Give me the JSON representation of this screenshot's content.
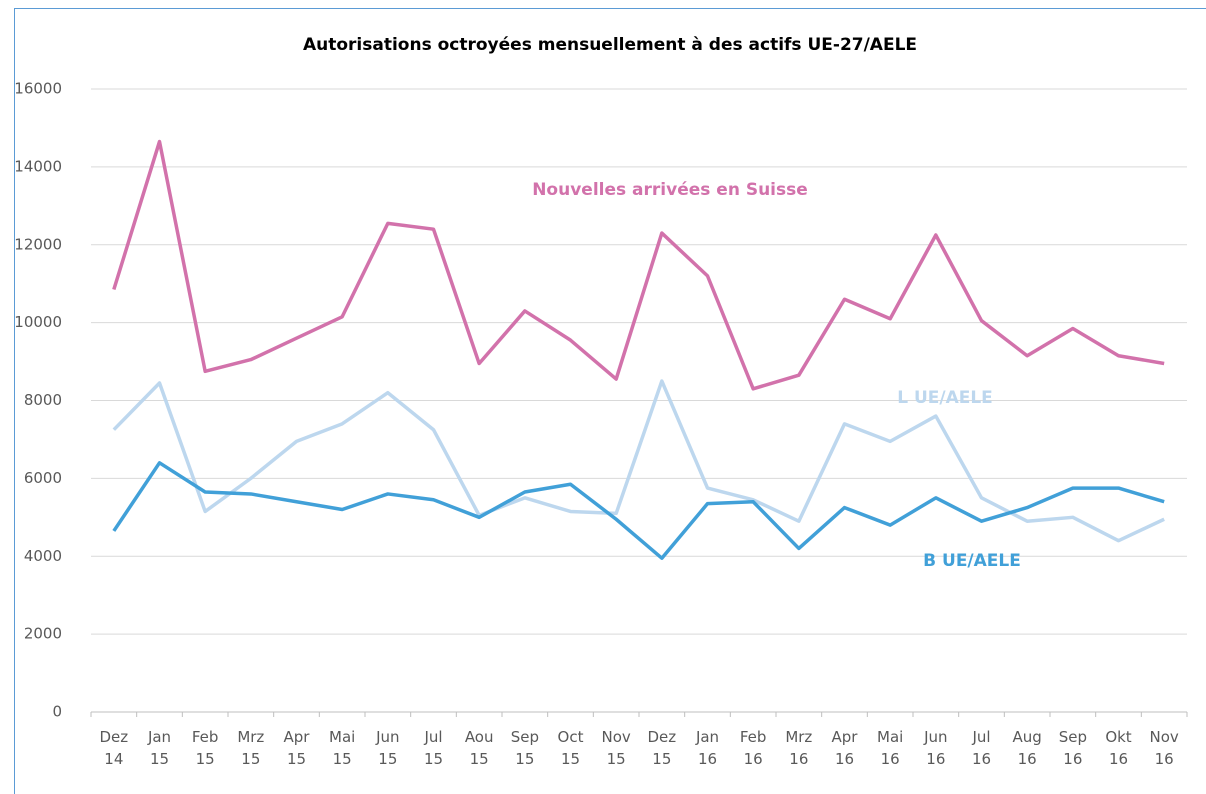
{
  "chart_data": {
    "type": "line",
    "title": "Autorisations octroyées mensuellement à des actifs UE-27/AELE",
    "categories": [
      "Dez 14",
      "Jan 15",
      "Feb 15",
      "Mrz 15",
      "Apr 15",
      "Mai 15",
      "Jun 15",
      "Jul 15",
      "Aou 15",
      "Sep 15",
      "Oct 15",
      "Nov 15",
      "Dez 15",
      "Jan 16",
      "Feb 16",
      "Mrz 16",
      "Apr 16",
      "Mai 16",
      "Jun 16",
      "Jul 16",
      "Aug 16",
      "Sep 16",
      "Okt 16",
      "Nov 16"
    ],
    "series": [
      {
        "name": "Nouvelles arrivées en Suisse",
        "color": "#d272ab",
        "values": [
          10850,
          14650,
          8750,
          9050,
          9600,
          10150,
          12550,
          12400,
          8950,
          10300,
          9550,
          8550,
          12300,
          11200,
          8300,
          8650,
          10600,
          10100,
          12250,
          10050,
          9150,
          9850,
          9150,
          8950
        ]
      },
      {
        "name": "L UE/AELE",
        "color": "#bdd7ee",
        "values": [
          7250,
          8450,
          5150,
          6000,
          6950,
          7400,
          8200,
          7250,
          5050,
          5500,
          5150,
          5100,
          8500,
          5750,
          5450,
          4900,
          7400,
          6950,
          7600,
          5500,
          4900,
          5000,
          4400,
          4950
        ]
      },
      {
        "name": "B UE/AELE",
        "color": "#41a0d8",
        "values": [
          4650,
          6400,
          5650,
          5600,
          5400,
          5200,
          5600,
          5450,
          5000,
          5650,
          5850,
          4950,
          3950,
          5350,
          5400,
          4200,
          5250,
          4800,
          5500,
          4900,
          5250,
          5750,
          5750,
          5400
        ]
      }
    ],
    "ylim": [
      0,
      16000
    ],
    "yticks": [
      0,
      2000,
      4000,
      6000,
      8000,
      10000,
      12000,
      14000,
      16000
    ],
    "grid": true
  }
}
